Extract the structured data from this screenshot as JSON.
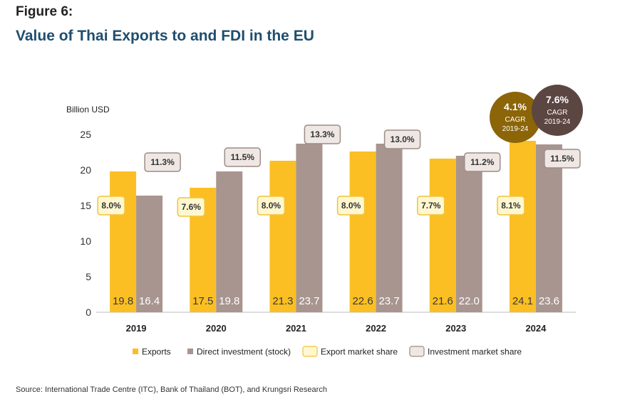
{
  "figure_label": "Figure 6:",
  "title": "Value of Thai Exports to and FDI in the EU",
  "source": "Source: International Trade Centre (ITC), Bank of Thailand (BOT), and Krungsri Research",
  "colors": {
    "exports": "#FBBF24",
    "fdi": "#A8958F",
    "export_share_fill": "#FFF7CF",
    "export_share_border": "#F2C33A",
    "invest_share_fill": "#EFE7E4",
    "invest_share_border": "#9E8C87",
    "cagr_exports": "#8B6508",
    "cagr_fdi": "#5C4642"
  },
  "chart_data": {
    "type": "bar",
    "ylabel": "Billion USD",
    "ylim": [
      0,
      25
    ],
    "yticks": [
      0,
      5,
      10,
      15,
      20,
      25
    ],
    "categories": [
      "2019",
      "2020",
      "2021",
      "2022",
      "2023",
      "2024"
    ],
    "series": [
      {
        "name": "Exports",
        "values": [
          19.8,
          17.5,
          21.3,
          22.6,
          21.6,
          24.1
        ]
      },
      {
        "name": "Direct investment (stock)",
        "values": [
          16.4,
          19.8,
          23.7,
          23.7,
          22.0,
          23.6
        ]
      }
    ],
    "value_labels": {
      "exports": [
        "19.8",
        "17.5",
        "21.3",
        "22.6",
        "21.6",
        "24.1"
      ],
      "fdi": [
        "16.4",
        "19.8",
        "23.7",
        "23.7",
        "22.0",
        "23.6"
      ]
    },
    "export_market_share": [
      "8.0%",
      "7.6%",
      "8.0%",
      "8.0%",
      "7.7%",
      "8.1%"
    ],
    "investment_market_share": [
      "11.3%",
      "11.5%",
      "13.3%",
      "13.0%",
      "11.2%",
      "11.5%"
    ],
    "legend": [
      "Exports",
      "Direct investment (stock)",
      "Export market share",
      "Investment market share"
    ],
    "legend_position": "bottom",
    "cagr": [
      {
        "value": "4.1%",
        "line1": "CAGR",
        "line2": "2019-24"
      },
      {
        "value": "7.6%",
        "line1": "CAGR",
        "line2": "2019-24"
      }
    ]
  }
}
